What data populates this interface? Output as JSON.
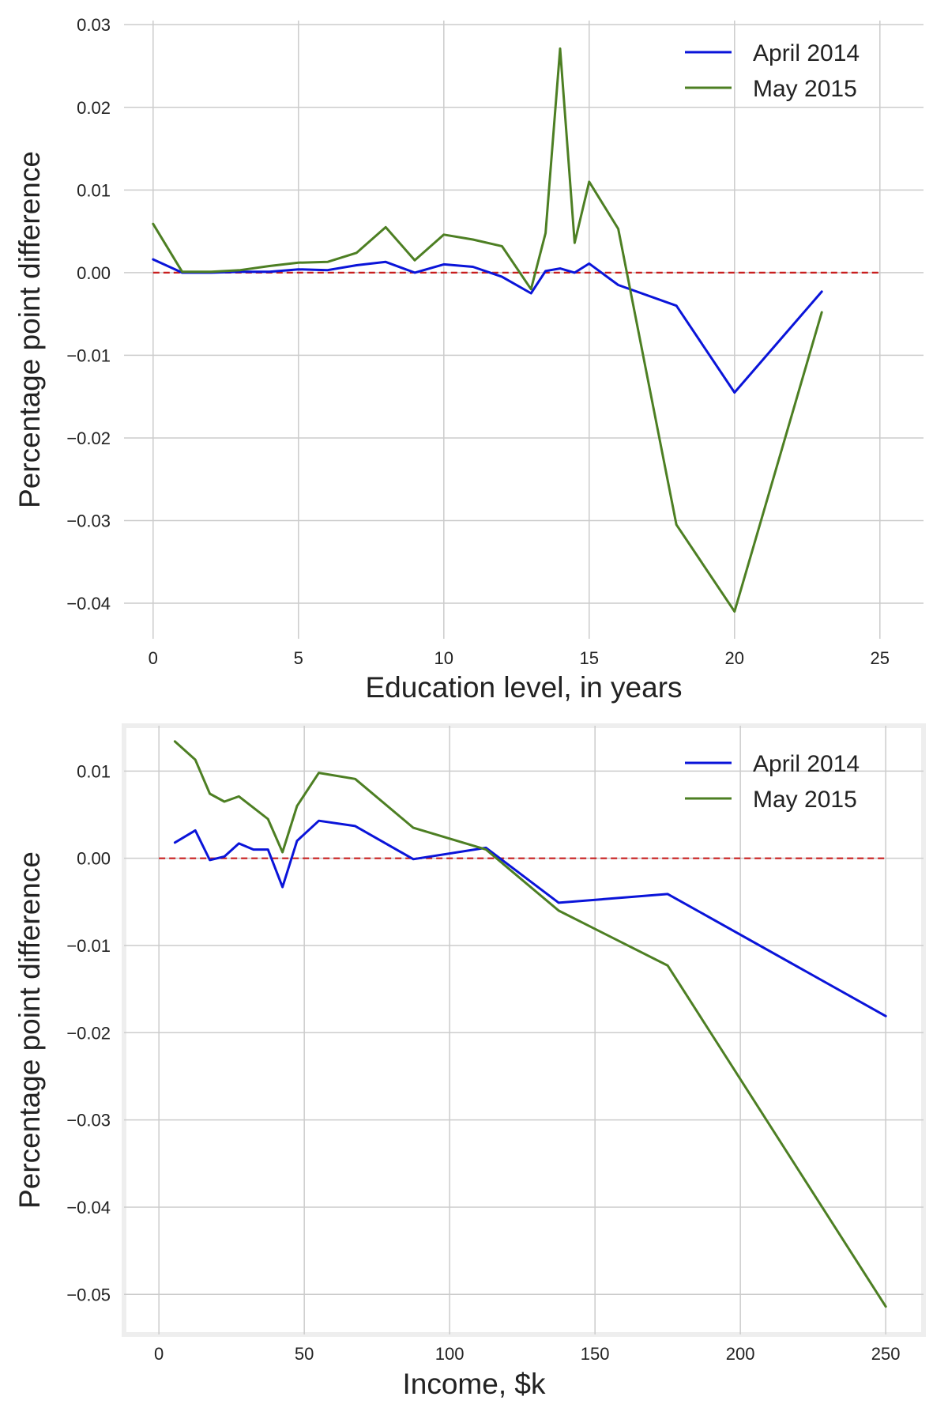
{
  "colors": {
    "series_1": "#0a14d9",
    "series_2": "#4d7f23",
    "zero_line": "#c81e1e",
    "grid": "#cccccc",
    "bottom_panel_border": "#eeeeee"
  },
  "chart_data": [
    {
      "type": "line",
      "title": "",
      "xlabel": "Education level, in years",
      "ylabel": "Percentage point difference",
      "xlim": [
        -1,
        26.5
      ],
      "ylim": [
        -0.0443,
        0.0305
      ],
      "xticks": [
        0,
        5,
        10,
        15,
        20,
        25
      ],
      "xtick_labels": [
        "0",
        "5",
        "10",
        "15",
        "20",
        "25"
      ],
      "yticks": [
        0.03,
        0.02,
        0.01,
        0.0,
        -0.01,
        -0.02,
        -0.03,
        -0.04
      ],
      "ytick_labels": [
        "0.03",
        "0.02",
        "0.01",
        "0.00",
        "−0.01",
        "−0.02",
        "−0.03",
        "−0.04"
      ],
      "grid": true,
      "legend_position": "top-right",
      "reference_line": {
        "y": 0,
        "style": "dashed",
        "x_range": [
          0,
          25
        ]
      },
      "series": [
        {
          "name": "April 2014",
          "color": "#0a14d9",
          "x": [
            0,
            1,
            2,
            3,
            4,
            5,
            6,
            7,
            8,
            9,
            10,
            11,
            12,
            13,
            13.5,
            14,
            14.5,
            15,
            16,
            18,
            20,
            23
          ],
          "y": [
            0.0016,
            0.0,
            0.0,
            0.0001,
            0.0001,
            0.0004,
            0.0003,
            0.0009,
            0.0013,
            0.0,
            0.001,
            0.0007,
            -0.0005,
            -0.0025,
            0.0002,
            0.0005,
            0.0,
            0.0011,
            -0.0015,
            -0.004,
            -0.0145,
            -0.0023
          ]
        },
        {
          "name": "May 2015",
          "color": "#4d7f23",
          "x": [
            0,
            1,
            2,
            3,
            4,
            5,
            6,
            7,
            8,
            9,
            10,
            11,
            12,
            13,
            13.5,
            14,
            14.5,
            15,
            16,
            18,
            20,
            23
          ],
          "y": [
            0.0059,
            0.0001,
            0.0001,
            0.0003,
            0.0008,
            0.0012,
            0.0013,
            0.0024,
            0.0055,
            0.0015,
            0.0046,
            0.004,
            0.0032,
            -0.002,
            0.0048,
            0.0271,
            0.0036,
            0.011,
            0.0053,
            -0.0305,
            -0.041,
            -0.0048
          ]
        }
      ]
    },
    {
      "type": "line",
      "title": "",
      "xlabel": "Income, $k",
      "ylabel": "Percentage point difference",
      "xlim": [
        -12,
        263
      ],
      "ylim": [
        -0.0546,
        0.0152
      ],
      "xticks": [
        0,
        50,
        100,
        150,
        200,
        250
      ],
      "xtick_labels": [
        "0",
        "50",
        "100",
        "150",
        "200",
        "250"
      ],
      "yticks": [
        0.01,
        0.0,
        -0.01,
        -0.02,
        -0.03,
        -0.04,
        -0.05
      ],
      "ytick_labels": [
        "0.01",
        "0.00",
        "−0.01",
        "−0.02",
        "−0.03",
        "−0.04",
        "−0.05"
      ],
      "grid": true,
      "legend_position": "top-right",
      "reference_line": {
        "y": 0,
        "style": "dashed",
        "x_range": [
          0,
          250
        ]
      },
      "series": [
        {
          "name": "April 2014",
          "color": "#0a14d9",
          "x": [
            5.5,
            12.5,
            17.5,
            22.5,
            27.5,
            32.5,
            37.5,
            42.5,
            47.5,
            55,
            67.5,
            87.5,
            112.5,
            137.5,
            175,
            250
          ],
          "y": [
            0.0018,
            0.0032,
            -0.0002,
            0.0002,
            0.0017,
            0.001,
            0.001,
            -0.0033,
            0.002,
            0.0043,
            0.0037,
            -0.0001,
            0.0012,
            -0.0051,
            -0.0041,
            -0.0181
          ]
        },
        {
          "name": "May 2015",
          "color": "#4d7f23",
          "x": [
            5.5,
            12.5,
            17.5,
            22.5,
            27.5,
            32.5,
            37.5,
            42.5,
            47.5,
            55,
            67.5,
            87.5,
            112.5,
            137.5,
            175,
            250
          ],
          "y": [
            0.0134,
            0.0113,
            0.0074,
            0.0065,
            0.0071,
            0.0058,
            0.0045,
            0.0007,
            0.006,
            0.0098,
            0.0091,
            0.0035,
            0.001,
            -0.006,
            -0.0123,
            -0.0514
          ]
        }
      ]
    }
  ]
}
